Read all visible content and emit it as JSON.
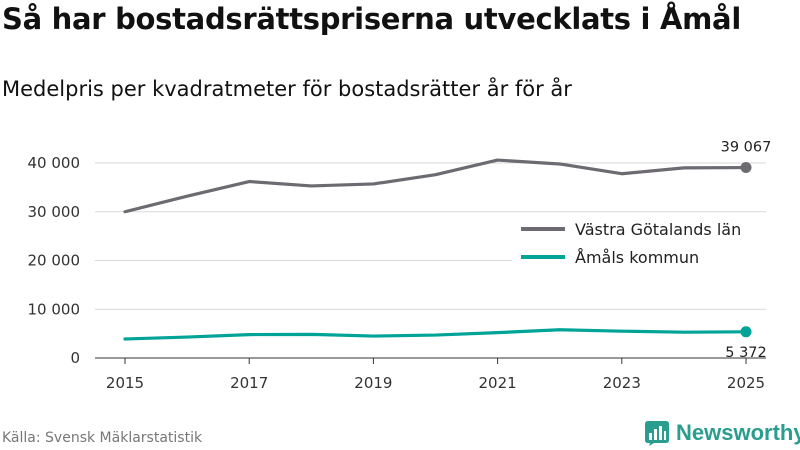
{
  "header": {
    "title": "Så har bostadsrättspriserna utvecklats i Åmål",
    "subtitle": "Medelpris per kvadratmeter för bostadsrätter år för år"
  },
  "footer": {
    "source": "Källa: Svensk Mäklarstatistik",
    "brand": "Newsworthy"
  },
  "chart_data": {
    "type": "line",
    "title": "Så har bostadsrättspriserna utvecklats i Åmål",
    "subtitle": "Medelpris per kvadratmeter för bostadsrätter år för år",
    "xlabel": "",
    "ylabel": "",
    "x": [
      2015,
      2016,
      2017,
      2018,
      2019,
      2020,
      2021,
      2022,
      2023,
      2024,
      2025
    ],
    "xticks": [
      2015,
      2017,
      2019,
      2021,
      2023,
      2025
    ],
    "xtick_labels": [
      "2015",
      "2017",
      "2019",
      "2021",
      "2023",
      "2025"
    ],
    "ylim": [
      0,
      40000
    ],
    "yticks": [
      0,
      10000,
      20000,
      30000,
      40000
    ],
    "ytick_labels": [
      "0",
      "10 000",
      "20 000",
      "30 000",
      "40 000"
    ],
    "series": [
      {
        "name": "Västra Götalands län",
        "color": "#6d6a72",
        "values": [
          30000,
          33200,
          36200,
          35300,
          35700,
          37600,
          40600,
          39800,
          37800,
          39000,
          39067
        ],
        "end_label": "39 067"
      },
      {
        "name": "Åmåls kommun",
        "color": "#00a398",
        "values": [
          3900,
          4300,
          4800,
          4850,
          4500,
          4700,
          5200,
          5800,
          5500,
          5300,
          5372
        ],
        "end_label": "5 372"
      }
    ],
    "legend_position": "right"
  },
  "colors": {
    "grid": "#d9d9d9",
    "axis": "#333333",
    "brand": "#2a9d8f"
  }
}
